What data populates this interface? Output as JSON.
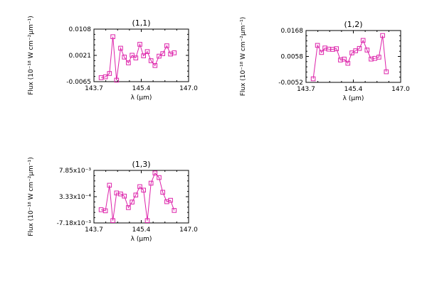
{
  "chart_data": [
    {
      "type": "line",
      "title": "(1,1)",
      "xlabel": "λ (μm)",
      "ylabel": "Flux (10⁻¹⁸ W cm⁻²μm⁻¹)",
      "xlim": [
        143.7,
        147.0
      ],
      "ylim": [
        -0.0065,
        0.0108
      ],
      "xticks": [
        "143.7",
        "145.4",
        "147.0"
      ],
      "yticks": [
        "-0.0065",
        "0.0021",
        "0.0108"
      ],
      "grid": false,
      "series": [
        {
          "marker": "square",
          "color": "#dd22aa",
          "x": [
            143.95,
            144.1,
            144.24,
            144.36,
            144.49,
            144.63,
            144.76,
            144.9,
            145.03,
            145.16,
            145.3,
            145.43,
            145.56,
            145.69,
            145.83,
            145.97,
            146.1,
            146.24,
            146.37,
            146.5
          ],
          "y": [
            -0.0052,
            -0.0049,
            -0.0038,
            0.0083,
            -0.006,
            0.0045,
            0.0016,
            -0.0003,
            0.0022,
            0.0013,
            0.0058,
            0.002,
            0.0034,
            0.0004,
            -0.0012,
            0.0019,
            0.0027,
            0.0053,
            0.0026,
            0.003
          ]
        }
      ]
    },
    {
      "type": "line",
      "title": "(1,2)",
      "xlabel": "λ (μm)",
      "ylabel": "Flux (10⁻¹⁸ W cm⁻²μm⁻¹)",
      "xlim": [
        143.7,
        147.0
      ],
      "ylim": [
        -0.0052,
        0.0168
      ],
      "xticks": [
        "143.7",
        "145.4",
        "147.0"
      ],
      "yticks": [
        "-0.0052",
        "0.0058",
        "0.0168"
      ],
      "grid": false,
      "series": [
        {
          "marker": "square",
          "color": "#dd22aa",
          "x": [
            143.95,
            144.1,
            144.24,
            144.36,
            144.49,
            144.63,
            144.76,
            144.9,
            145.03,
            145.16,
            145.3,
            145.43,
            145.56,
            145.69,
            145.83,
            145.97,
            146.1,
            146.24,
            146.37,
            146.5
          ],
          "y": [
            -0.0037,
            0.0105,
            0.0075,
            0.0094,
            0.0089,
            0.0088,
            0.0091,
            0.0043,
            0.0047,
            0.0029,
            0.0073,
            0.0082,
            0.0092,
            0.0126,
            0.0085,
            0.0047,
            0.005,
            0.0055,
            0.0147,
            -0.0007
          ]
        }
      ]
    },
    {
      "type": "line",
      "title": "(1,3)",
      "xlabel": "λ (μm)",
      "ylabel": "Flux (10⁻¹⁸ W cm⁻²μm⁻¹)",
      "xlim": [
        143.7,
        147.0
      ],
      "ylim": [
        -0.00718,
        0.00785
      ],
      "xticks": [
        "143.7",
        "145.4",
        "147.0"
      ],
      "yticks": [
        "-7.18x10⁻³",
        "3.33x10⁻⁴",
        "7.85x10⁻³"
      ],
      "grid": false,
      "series": [
        {
          "marker": "square",
          "color": "#dd22aa",
          "x": [
            143.95,
            144.1,
            144.24,
            144.36,
            144.49,
            144.63,
            144.76,
            144.9,
            145.03,
            145.16,
            145.3,
            145.43,
            145.56,
            145.69,
            145.83,
            145.97,
            146.1,
            146.24,
            146.37,
            146.5
          ],
          "y": [
            -0.0034,
            -0.0037,
            0.0036,
            -0.0065,
            0.0014,
            0.0011,
            0.0005,
            -0.0028,
            -0.0012,
            0.0008,
            0.0032,
            0.0022,
            -0.0065,
            0.0042,
            0.0071,
            0.0058,
            0.0016,
            -0.0011,
            -0.0007,
            -0.0036
          ]
        }
      ]
    }
  ]
}
